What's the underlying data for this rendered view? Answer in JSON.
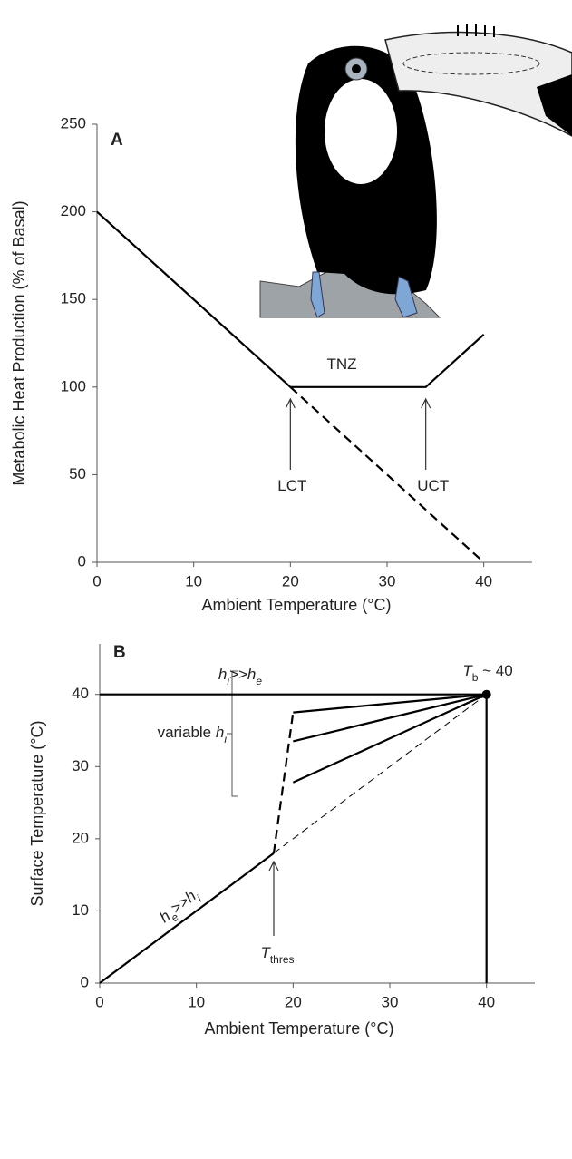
{
  "chart_data": [
    {
      "type": "line",
      "panel_label": "A",
      "xlabel": "Ambient Temperature (°C)",
      "ylabel": "Metabolic Heat Production (% of Basal)",
      "xlim": [
        0,
        45
      ],
      "ylim": [
        0,
        250
      ],
      "xticks": [
        0,
        10,
        20,
        30,
        40
      ],
      "yticks": [
        0,
        50,
        100,
        150,
        200,
        250
      ],
      "series": [
        {
          "x": [
            0,
            20,
            34,
            40
          ],
          "values": [
            200,
            100,
            100,
            130
          ],
          "color": "#000000",
          "style": "solid"
        },
        {
          "x": [
            20,
            40
          ],
          "values": [
            100,
            0
          ],
          "color": "#000000",
          "style": "dashed"
        }
      ],
      "annotations": [
        {
          "parts": [
            {
              "text": "TNZ"
            }
          ]
        },
        {
          "parts": [
            {
              "text": "LCT"
            }
          ],
          "x": 20
        },
        {
          "parts": [
            {
              "text": "UCT"
            }
          ],
          "x": 34
        }
      ]
    },
    {
      "type": "line",
      "panel_label": "B",
      "xlabel": "Ambient Temperature (°C)",
      "ylabel": "Surface Temperature (°C)",
      "xlim": [
        0,
        45
      ],
      "ylim": [
        0,
        47
      ],
      "xticks": [
        0,
        10,
        20,
        30,
        40
      ],
      "yticks": [
        0,
        10,
        20,
        30,
        40
      ],
      "series": [
        {
          "x": [
            0,
            40
          ],
          "values": [
            40,
            40
          ],
          "color": "#000000",
          "style": "solid"
        },
        {
          "x": [
            0,
            18
          ],
          "values": [
            0,
            18
          ],
          "color": "#000000",
          "style": "solid"
        },
        {
          "x": [
            18,
            40
          ],
          "values": [
            18,
            40
          ],
          "color": "#000000",
          "style": "thin-dashed"
        },
        {
          "x": [
            18,
            20
          ],
          "values": [
            18,
            37.5
          ],
          "color": "#000000",
          "style": "dashed"
        },
        {
          "x": [
            20,
            40
          ],
          "values": [
            37.5,
            40
          ],
          "color": "#000000",
          "style": "solid"
        },
        {
          "x": [
            20,
            40
          ],
          "values": [
            33.5,
            40
          ],
          "color": "#000000",
          "style": "solid"
        },
        {
          "x": [
            20,
            40
          ],
          "values": [
            27.8,
            40
          ],
          "color": "#000000",
          "style": "solid"
        },
        {
          "x": [
            40,
            40
          ],
          "values": [
            0,
            40
          ],
          "color": "#000000",
          "style": "solid"
        },
        {
          "x": [
            40
          ],
          "values": [
            40
          ],
          "color": "#000000",
          "style": "marker"
        }
      ],
      "annotations": [
        {
          "parts": [
            {
              "text": "h",
              "italic": true
            },
            {
              "text": "i",
              "italic": true,
              "sub": true
            },
            {
              "text": ">>"
            },
            {
              "text": "h",
              "italic": true
            },
            {
              "text": "e",
              "italic": true,
              "sub": true
            }
          ]
        },
        {
          "parts": [
            {
              "text": "h",
              "italic": true
            },
            {
              "text": "e",
              "italic": true,
              "sub": true
            },
            {
              "text": ">>"
            },
            {
              "text": "h",
              "italic": true
            },
            {
              "text": "i",
              "italic": true,
              "sub": true
            }
          ]
        },
        {
          "parts": [
            {
              "text": "T",
              "italic": true
            },
            {
              "text": "b",
              "sub": true
            },
            {
              "text": " ~ 40"
            }
          ]
        },
        {
          "parts": [
            {
              "text": "variable "
            },
            {
              "text": "h",
              "italic": true
            },
            {
              "text": "i",
              "italic": true,
              "sub": true
            }
          ]
        },
        {
          "parts": [
            {
              "text": "T",
              "italic": true
            },
            {
              "text": "thres",
              "sub": true
            }
          ],
          "x": 18
        }
      ]
    }
  ]
}
